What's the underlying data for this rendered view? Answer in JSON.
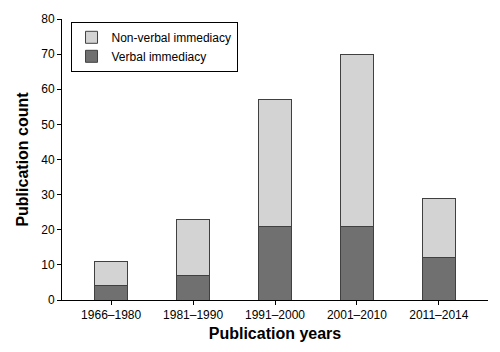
{
  "chart_data": {
    "type": "bar",
    "stacked": true,
    "x_label": "Publication years",
    "y_label": "Publication count",
    "categories": [
      "1966–1980",
      "1981–1990",
      "1991–2000",
      "2001–2010",
      "2011–2014"
    ],
    "series": [
      {
        "name": "Verbal immediacy",
        "color": "#707070",
        "values": [
          4,
          7,
          21,
          21,
          12
        ]
      },
      {
        "name": "Non-verbal immediacy",
        "color": "#d3d3d3",
        "values": [
          7,
          16,
          36,
          49,
          17
        ]
      }
    ],
    "ylim": [
      0,
      80
    ],
    "yticks": [
      0,
      10,
      20,
      30,
      40,
      50,
      60,
      70,
      80
    ],
    "grid": false,
    "legend": "upper left"
  }
}
